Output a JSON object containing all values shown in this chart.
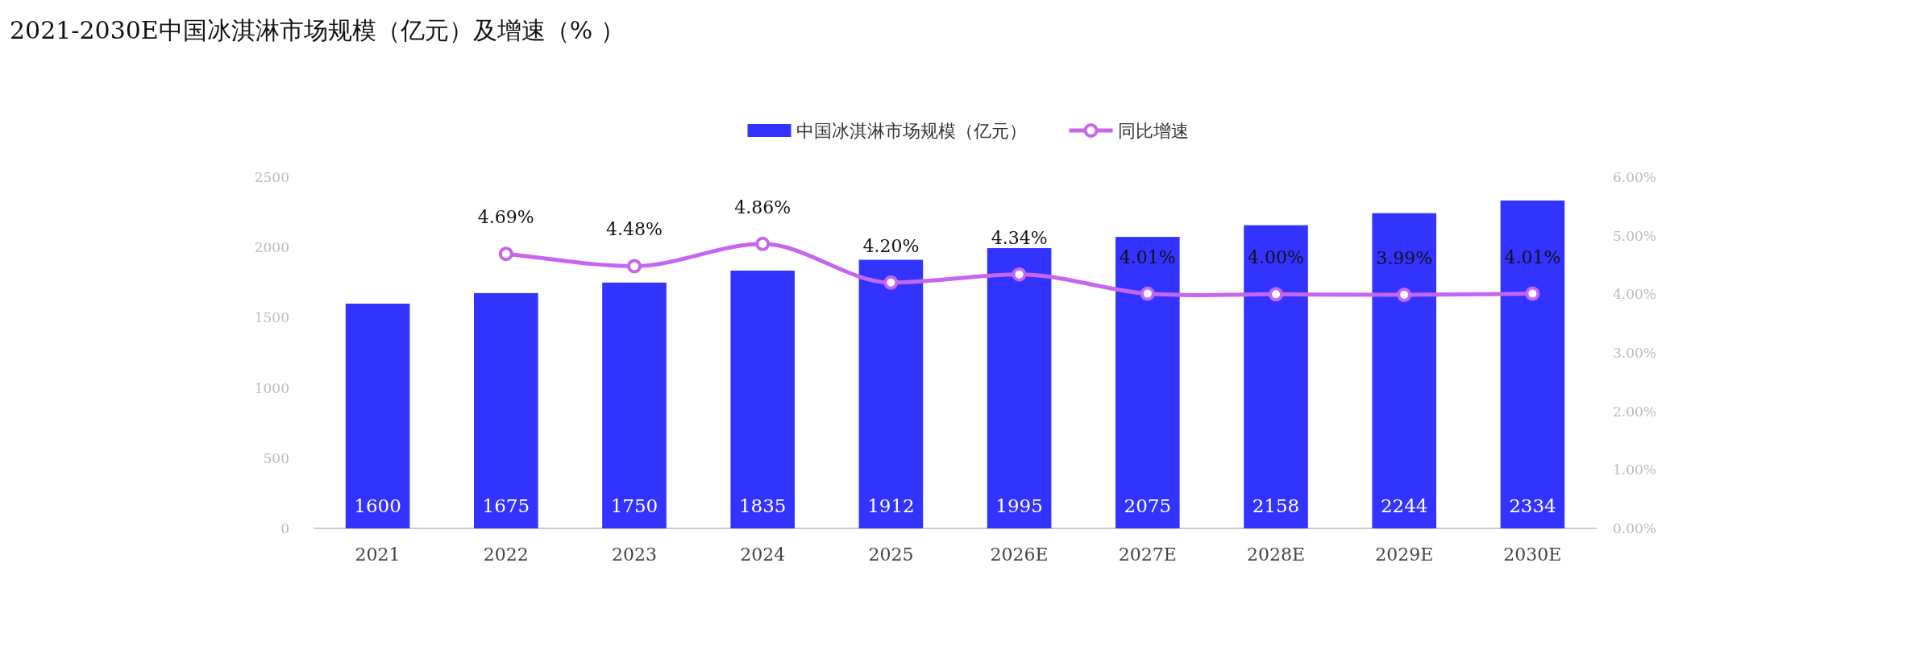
{
  "chart_data": {
    "type": "bar",
    "title": "2021-2030E中国冰淇淋市场规模（亿元）及增速（% ）",
    "categories": [
      "2021",
      "2022",
      "2023",
      "2024",
      "2025",
      "2026E",
      "2027E",
      "2028E",
      "2029E",
      "2030E"
    ],
    "series": [
      {
        "name": "中国冰淇淋市场规模（亿元）",
        "color": "#3333ff",
        "values": [
          1600,
          1675,
          1750,
          1835,
          1912,
          1995,
          2075,
          2158,
          2244,
          2334
        ],
        "value_labels": [
          "1600",
          "1675",
          "1750",
          "1835",
          "1912",
          "1995",
          "2075",
          "2158",
          "2244",
          "2334"
        ]
      },
      {
        "name": "同比增速",
        "type": "line",
        "axis": "y2",
        "color": "#c466ee",
        "marker": "circle",
        "values": [
          null,
          4.69,
          4.48,
          4.86,
          4.2,
          4.34,
          4.01,
          4.0,
          3.99,
          4.01
        ],
        "value_labels": [
          null,
          "4.69%",
          "4.48%",
          "4.86%",
          "4.20%",
          "4.34%",
          "4.01%",
          "4.00%",
          "3.99%",
          "4.01%"
        ]
      }
    ],
    "ylim": [
      0,
      2500
    ],
    "yticks": [
      0,
      500,
      1000,
      1500,
      2000,
      2500
    ],
    "y2lim": [
      0,
      6
    ],
    "y2ticks": [
      {
        "value": 0,
        "label": "0.00%"
      },
      {
        "value": 1,
        "label": "1.00%"
      },
      {
        "value": 2,
        "label": "2.00%"
      },
      {
        "value": 3,
        "label": "3.00%"
      },
      {
        "value": 4,
        "label": "4.00%"
      },
      {
        "value": 5,
        "label": "5.00%"
      },
      {
        "value": 6,
        "label": "6.00%"
      }
    ],
    "legend": "top"
  }
}
